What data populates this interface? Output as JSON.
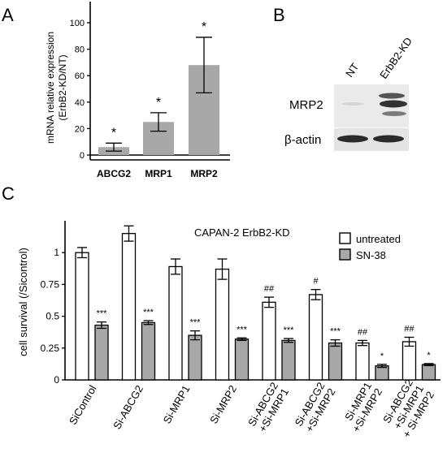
{
  "colors": {
    "bar_gray": "#a8a8a8",
    "bar_white": "#ffffff",
    "stroke": "#000000"
  },
  "panels": {
    "A": {
      "label": "A"
    },
    "B": {
      "label": "B"
    },
    "C": {
      "label": "C"
    }
  },
  "chart_data": [
    {
      "panel": "A",
      "type": "bar",
      "ylabel": "mRNA relative expression (ErbB2-KD/NT)",
      "ylabel_lines": [
        "mRNA relative expression",
        "(ErbB2-KD/NT)"
      ],
      "xlabel": "",
      "ylim": [
        0,
        115
      ],
      "y_ticks": [
        0,
        20,
        40,
        60,
        80,
        100
      ],
      "categories": [
        "ABCG2",
        "MRP1",
        "MRP2"
      ],
      "values": [
        6,
        25,
        68
      ],
      "errors": [
        3,
        7,
        21
      ],
      "annotations": [
        "*",
        "*",
        "*"
      ],
      "axis_break": true
    },
    {
      "panel": "C",
      "type": "bar",
      "title": "CAPAN-2 ErbB2-KD",
      "ylabel": "cell survival (/Sicontrol)",
      "xlabel": "",
      "ylim": [
        0,
        1.25
      ],
      "y_ticks": [
        0,
        0.25,
        0.5,
        0.75,
        1
      ],
      "y_tick_labels": [
        "0",
        "0.25",
        "0.5",
        "0.75",
        "1"
      ],
      "legend_position": "top-right",
      "categories": [
        "SiControl",
        "Si-ABCG2",
        "Si-MRP1",
        "Si-MRP2",
        "Si-ABCG2 +Si-MRP1",
        "Si-ABCG2 +Si-MRP2",
        "Si-MRP1 +Si-MRP2",
        "Si-ABCG2 +Si-MRP1 + Si-MRP2"
      ],
      "category_lines": [
        [
          "SiControl"
        ],
        [
          "Si-ABCG2"
        ],
        [
          "Si-MRP1"
        ],
        [
          "Si-MRP2"
        ],
        [
          "Si-ABCG2",
          "+Si-MRP1"
        ],
        [
          "Si-ABCG2",
          "+Si-MRP2"
        ],
        [
          "Si-MRP1",
          "+Si-MRP2"
        ],
        [
          "Si-ABCG2",
          "+Si-MRP1",
          "+ Si-MRP2"
        ]
      ],
      "series": [
        {
          "name": "untreated",
          "color": "#ffffff",
          "values": [
            1.0,
            1.15,
            0.89,
            0.87,
            0.61,
            0.67,
            0.29,
            0.3
          ],
          "errors": [
            0.04,
            0.06,
            0.06,
            0.08,
            0.04,
            0.04,
            0.02,
            0.035
          ],
          "annotations": [
            "",
            "",
            "",
            "",
            "##",
            "#",
            "##",
            "##"
          ]
        },
        {
          "name": "SN-38",
          "color": "#a8a8a8",
          "values": [
            0.43,
            0.45,
            0.35,
            0.32,
            0.31,
            0.29,
            0.11,
            0.12
          ],
          "errors": [
            0.025,
            0.015,
            0.035,
            0.01,
            0.015,
            0.025,
            0.012,
            0.008
          ],
          "annotations": [
            "***",
            "***",
            "***",
            "***",
            "***",
            "***",
            "*",
            "*"
          ]
        }
      ]
    }
  ],
  "blot": {
    "lanes": [
      "NT",
      "ErbB2-KD"
    ],
    "rows": [
      "MRP2",
      "β-actin"
    ]
  }
}
